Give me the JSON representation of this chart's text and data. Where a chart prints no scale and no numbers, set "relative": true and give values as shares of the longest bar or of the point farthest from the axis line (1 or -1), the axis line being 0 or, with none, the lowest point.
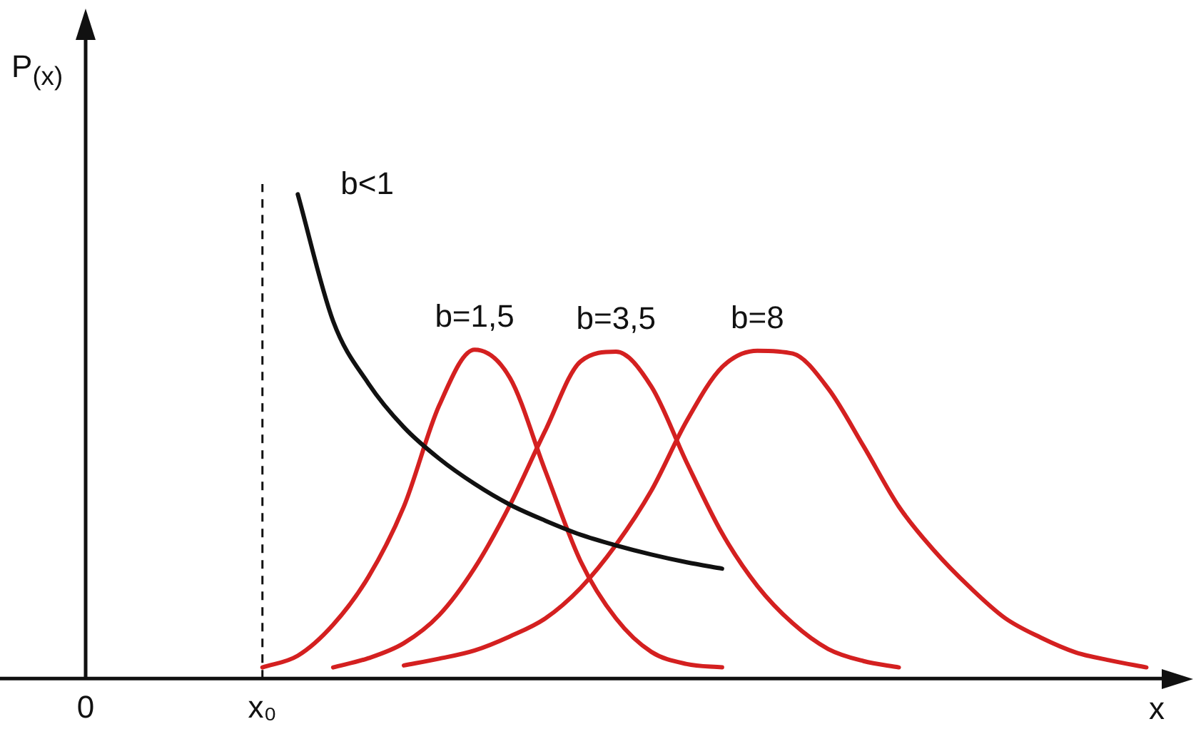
{
  "chart_data": {
    "type": "line",
    "relative": true,
    "xlabel": "x",
    "ylabel": "P$_{(x)}$",
    "categories": [
      "0",
      null,
      null,
      null,
      null,
      "x₀",
      null,
      null,
      null,
      null,
      null,
      null,
      null,
      null,
      null,
      null,
      null,
      null,
      null,
      null,
      null,
      null,
      null,
      null,
      null,
      null,
      null,
      null,
      null,
      null,
      null,
      null
    ],
    "tick_labels": "x",
    "grid": false,
    "legend": false,
    "marker": "none",
    "line_style": "solid",
    "ref_lines": [
      {
        "axis": "x",
        "value": "x₀",
        "label": null,
        "color": "#111111",
        "line_style": "dashed"
      }
    ],
    "series": [
      {
        "name": "b<1",
        "color": "#111111",
        "values": [
          null,
          null,
          null,
          null,
          null,
          null,
          1.0,
          0.738,
          0.609,
          0.519,
          0.454,
          0.402,
          0.359,
          0.326,
          0.297,
          0.275,
          0.256,
          0.24,
          0.227,
          null,
          null,
          null,
          null,
          null,
          null,
          null,
          null,
          null,
          null,
          null,
          null,
          null
        ]
      },
      {
        "name": "b=1,5",
        "color": "#d42020",
        "values": [
          null,
          null,
          null,
          null,
          null,
          0.023,
          0.047,
          0.111,
          0.21,
          0.355,
          0.564,
          0.679,
          0.621,
          0.429,
          0.242,
          0.124,
          0.055,
          0.03,
          0.023,
          null,
          null,
          null,
          null,
          null,
          null,
          null,
          null,
          null,
          null,
          null,
          null,
          null
        ]
      },
      {
        "name": "b=3,5",
        "color": "#d42020",
        "values": [
          null,
          null,
          null,
          null,
          null,
          null,
          null,
          0.023,
          0.042,
          0.073,
          0.131,
          0.228,
          0.358,
          0.512,
          0.655,
          0.675,
          0.603,
          0.446,
          0.3,
          0.191,
          0.114,
          0.061,
          0.036,
          0.023,
          null,
          null,
          null,
          null,
          null,
          null,
          null,
          null
        ]
      },
      {
        "name": "b=8",
        "color": "#d42020",
        "values": [
          null,
          null,
          null,
          null,
          null,
          null,
          null,
          null,
          null,
          0.027,
          0.041,
          0.058,
          0.087,
          0.124,
          0.187,
          0.276,
          0.388,
          0.532,
          0.643,
          0.677,
          0.671,
          0.599,
          0.48,
          0.355,
          0.264,
          0.189,
          0.125,
          0.085,
          0.054,
          0.037,
          0.023,
          null
        ]
      }
    ]
  }
}
